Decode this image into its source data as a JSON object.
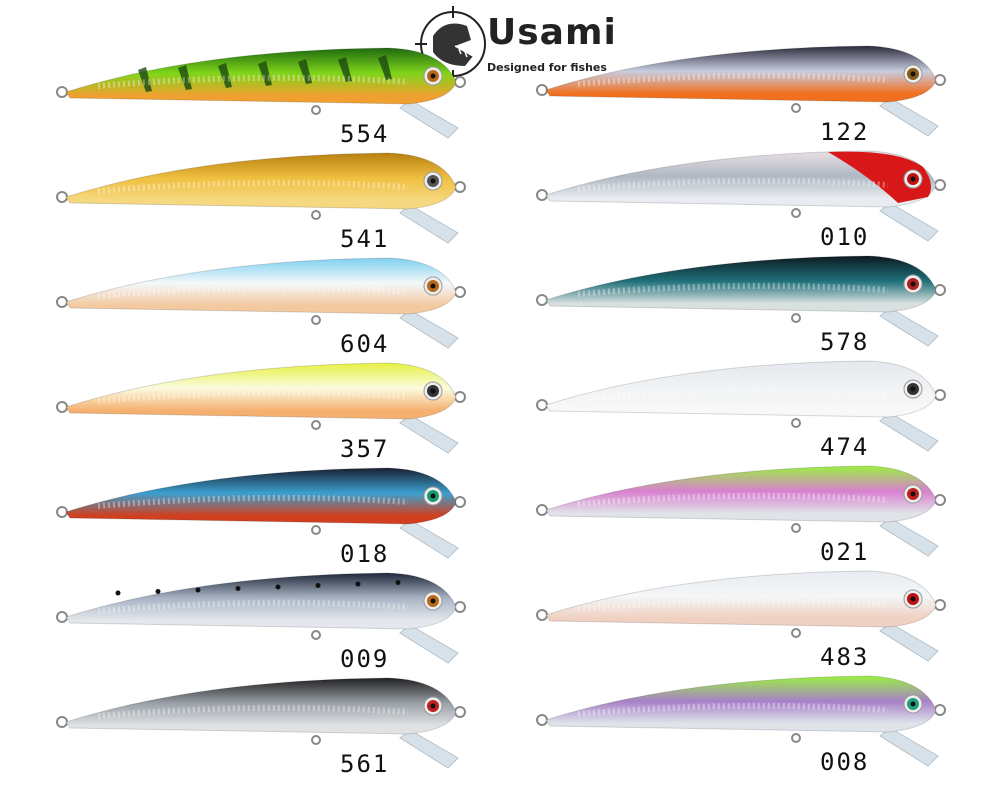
{
  "logo": {
    "brand": "Usami",
    "tagline": "Designed for fishes"
  },
  "lures": [
    {
      "code": "554",
      "column": "left",
      "top": "#1f6a10",
      "mid": "#7fd51a",
      "belly": "#f0a030",
      "eye": "#b86a1a",
      "bars": true
    },
    {
      "code": "541",
      "column": "left",
      "top": "#b88010",
      "mid": "#f0c040",
      "belly": "#f5d880",
      "eye": "#555"
    },
    {
      "code": "604",
      "column": "left",
      "top": "#7fd0f0",
      "mid": "#f4f8fa",
      "belly": "#f3c9a0",
      "eye": "#b86a1a"
    },
    {
      "code": "357",
      "column": "left",
      "top": "#e6f040",
      "mid": "#fafbe0",
      "belly": "#f5b070",
      "eye": "#333"
    },
    {
      "code": "018",
      "column": "left",
      "top": "#1a2030",
      "mid": "#3aa0d0",
      "belly": "#d04020",
      "eye": "#1a9a70"
    },
    {
      "code": "009",
      "column": "left",
      "top": "#20283a",
      "mid": "#a8b4c4",
      "belly": "#e4e8ec",
      "eye": "#b86a1a",
      "spots": true
    },
    {
      "code": "561",
      "column": "left",
      "top": "#202020",
      "mid": "#9aa0a8",
      "belly": "#e0e2e4",
      "eye": "#c02020"
    },
    {
      "code": "122",
      "column": "right",
      "top": "#2a2a3a",
      "mid": "#c8cde0",
      "belly": "#f07020",
      "eye": "#8a5a1a"
    },
    {
      "code": "010",
      "column": "right",
      "top": "#e8e0e4",
      "mid": "#b0b8c4",
      "belly": "#e8ecf0",
      "eye": "#c01010",
      "redhead": true
    },
    {
      "code": "578",
      "column": "right",
      "top": "#0c1a20",
      "mid": "#20707a",
      "belly": "#d8e0e0",
      "eye": "#b02020"
    },
    {
      "code": "474",
      "column": "right",
      "top": "#e4e8ec",
      "mid": "#f0f2f4",
      "belly": "#f8f8f8",
      "eye": "#333"
    },
    {
      "code": "021",
      "column": "right",
      "top": "#9af040",
      "mid": "#d880d0",
      "belly": "#e0e4e8",
      "eye": "#c02020"
    },
    {
      "code": "483",
      "column": "right",
      "top": "#e8ecf0",
      "mid": "#f4f6f8",
      "belly": "#f0d0c0",
      "eye": "#c01010"
    },
    {
      "code": "008",
      "column": "right",
      "top": "#9af040",
      "mid": "#a880c8",
      "belly": "#dfe4ea",
      "eye": "#20a080"
    }
  ]
}
